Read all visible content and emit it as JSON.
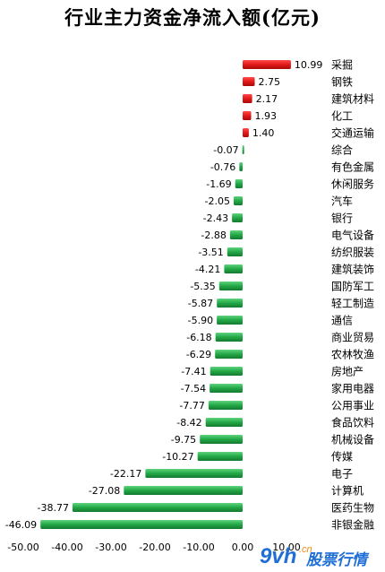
{
  "title": "行业主力资金净流入额(亿元)",
  "watermark": {
    "brand": "9vh",
    "domain": ".cn",
    "text": "股票行情"
  },
  "colors": {
    "positive": "#e21a1a",
    "negative": "#22a847",
    "watermark": "#1f6fd6",
    "watermark_accent": "#f08a1c"
  },
  "chart_data": {
    "type": "bar",
    "orientation": "horizontal",
    "title": "行业主力资金净流入额(亿元)",
    "categories": [
      "采掘",
      "钢铁",
      "建筑材料",
      "化工",
      "交通运输",
      "综合",
      "有色金属",
      "休闲服务",
      "汽车",
      "银行",
      "电气设备",
      "纺织服装",
      "建筑装饰",
      "国防军工",
      "轻工制造",
      "通信",
      "商业贸易",
      "农林牧渔",
      "房地产",
      "家用电器",
      "公用事业",
      "食品饮料",
      "机械设备",
      "传媒",
      "电子",
      "计算机",
      "医药生物",
      "非银金融"
    ],
    "values": [
      10.99,
      2.75,
      2.17,
      1.93,
      1.4,
      -0.07,
      -0.76,
      -1.69,
      -2.05,
      -2.43,
      -2.88,
      -3.51,
      -4.21,
      -5.35,
      -5.87,
      -5.9,
      -6.18,
      -6.29,
      -7.41,
      -7.54,
      -7.77,
      -8.42,
      -9.75,
      -10.27,
      -22.17,
      -27.08,
      -38.77,
      -46.09
    ],
    "value_labels": [
      "10.99",
      "2.75",
      "2.17",
      "1.93",
      "1.40",
      "-0.07",
      "-0.76",
      "-1.69",
      "-2.05",
      "-2.43",
      "-2.88",
      "-3.51",
      "-4.21",
      "-5.35",
      "-5.87",
      "-5.90",
      "-6.18",
      "-6.29",
      "-7.41",
      "-7.54",
      "-7.77",
      "-8.42",
      "-9.75",
      "-10.27",
      "-22.17",
      "-27.08",
      "-38.77",
      "-46.09"
    ],
    "xlim": [
      -50,
      10
    ],
    "xticks": [
      -50,
      -40,
      -30,
      -20,
      -10,
      0,
      10
    ],
    "xtick_labels": [
      "-50.00",
      "-40.00",
      "-30.00",
      "-20.00",
      "-10.00",
      "0.00",
      "10.00"
    ],
    "grid": false,
    "legend": "none"
  }
}
